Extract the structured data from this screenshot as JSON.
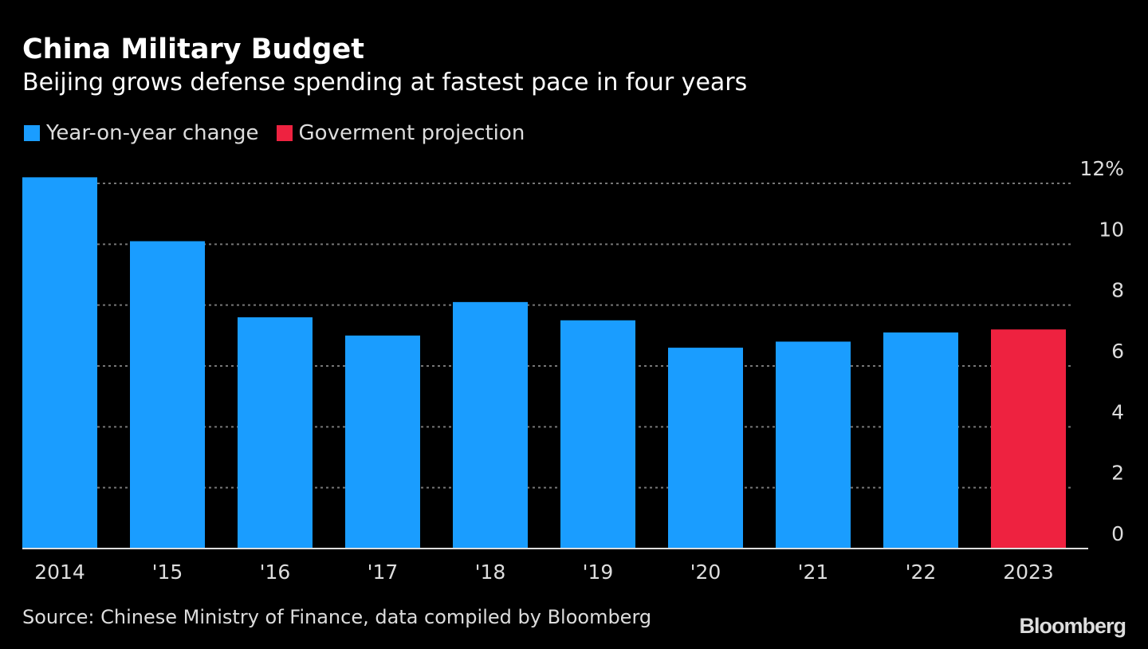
{
  "chart_data": {
    "type": "bar",
    "title": "China Military Budget",
    "subtitle": "Beijing grows defense spending at fastest pace in four years",
    "categories": [
      "2014",
      "'15",
      "'16",
      "'17",
      "'18",
      "'19",
      "'20",
      "'21",
      "'22",
      "2023"
    ],
    "values": [
      12.2,
      10.1,
      7.6,
      7.0,
      8.1,
      7.5,
      6.6,
      6.8,
      7.1,
      7.2
    ],
    "series_kind": [
      "actual",
      "actual",
      "actual",
      "actual",
      "actual",
      "actual",
      "actual",
      "actual",
      "actual",
      "projection"
    ],
    "legend": [
      {
        "label": "Year-on-year change",
        "color": "#1a9dff"
      },
      {
        "label": "Goverment projection",
        "color": "#ee2240"
      }
    ],
    "ylim": [
      0,
      12
    ],
    "yticks": [
      0,
      2,
      4,
      6,
      8,
      10,
      12
    ],
    "ytick_labels": [
      "0",
      "2",
      "4",
      "6",
      "8",
      "10",
      "12%"
    ],
    "ylabel": "",
    "xlabel": "",
    "grid": true,
    "legend_placement": "top-left",
    "source": "Source: Chinese Ministry of Finance, data compiled by Bloomberg",
    "brand": "Bloomberg"
  }
}
